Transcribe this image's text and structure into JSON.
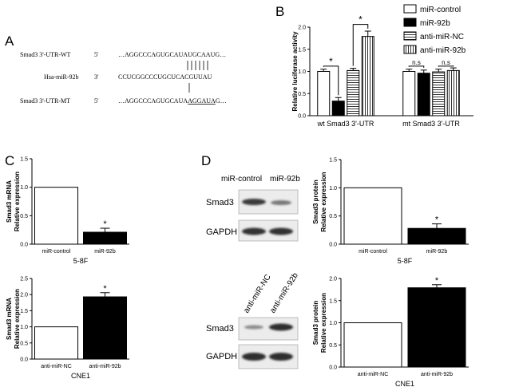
{
  "panels": {
    "A": {
      "letter": "A",
      "rows": [
        {
          "label": "Smad3 3'-UTR-WT",
          "end": "5'",
          "seq": "…AGGCCCAGUGCAUAUGCAAUG…"
        },
        {
          "label": "Hsa-miR-92b",
          "end": "3'",
          "seq": "CCUCGGCCCUGCUCACGUUAU"
        },
        {
          "label": "Smad3 3'-UTR-MT",
          "end": "5'",
          "seq_pre": "…AGGCCCAGUGCAUA",
          "seq_mut": "AGGAUA",
          "seq_post": "G…"
        }
      ]
    },
    "B": {
      "letter": "B"
    },
    "C": {
      "letter": "C"
    },
    "D": {
      "letter": "D",
      "blot_top": {
        "lanes": [
          "miR-control",
          "miR-92b"
        ],
        "rows": [
          "Smad3",
          "GAPDH"
        ]
      },
      "blot_bottom": {
        "lanes": [
          "anti-miR-NC",
          "anti-miR-92b"
        ],
        "rows": [
          "Smad3",
          "GAPDH"
        ]
      }
    }
  },
  "chart_data": [
    {
      "id": "B",
      "type": "bar",
      "ylabel": "Relative luciferase activity",
      "ylim": [
        0.0,
        2.0
      ],
      "yticks": [
        "0.0",
        "0.5",
        "1.0",
        "1.5",
        "2.0"
      ],
      "groups": [
        "wt Smad3 3'-UTR",
        "mt Smad3 3'-UTR"
      ],
      "legend": {
        "position": "top-right",
        "entries": [
          "miR-control",
          "miR-92b",
          "anti-miR-NC",
          "anti-miR-92b"
        ]
      },
      "series": [
        {
          "name": "miR-control",
          "values": [
            1.0,
            1.0
          ],
          "errors": [
            0.05,
            0.05
          ]
        },
        {
          "name": "miR-92b",
          "values": [
            0.33,
            0.96
          ],
          "errors": [
            0.08,
            0.07
          ]
        },
        {
          "name": "anti-miR-NC",
          "values": [
            1.02,
            0.99
          ],
          "errors": [
            0.05,
            0.06
          ]
        },
        {
          "name": "anti-miR-92b",
          "values": [
            1.79,
            1.02
          ],
          "errors": [
            0.12,
            0.06
          ]
        }
      ],
      "annotations": [
        "*",
        "*",
        "n.s",
        "n.s"
      ]
    },
    {
      "id": "C-top",
      "type": "bar",
      "ylabel": "Smad3 mRNA Relative expression",
      "ylim": [
        0.0,
        1.5
      ],
      "yticks": [
        "0.0",
        "0.5",
        "1.0",
        "1.5"
      ],
      "categories": [
        "miR-control",
        "miR-92b"
      ],
      "values": [
        1.0,
        0.21
      ],
      "errors": [
        0.0,
        0.07
      ],
      "xlabel": "5-8F",
      "annotations": [
        "*"
      ]
    },
    {
      "id": "C-bottom",
      "type": "bar",
      "ylabel": "Smad3 mRNA Relative expression",
      "ylim": [
        0.0,
        2.5
      ],
      "yticks": [
        "0.0",
        "0.5",
        "1.0",
        "1.5",
        "2.0",
        "2.5"
      ],
      "categories": [
        "anti-miR-NC",
        "anti-miR-92b"
      ],
      "values": [
        1.0,
        1.93
      ],
      "errors": [
        0.0,
        0.13
      ],
      "xlabel": "CNE1",
      "annotations": [
        "*"
      ]
    },
    {
      "id": "D-top",
      "type": "bar",
      "ylabel": "Smad3 protein Relative expression",
      "ylim": [
        0.0,
        1.5
      ],
      "yticks": [
        "0.0",
        "0.5",
        "1.0",
        "1.5"
      ],
      "categories": [
        "miR-control",
        "miR-92b"
      ],
      "values": [
        1.0,
        0.28
      ],
      "errors": [
        0.0,
        0.08
      ],
      "xlabel": "5-8F",
      "annotations": [
        "*"
      ]
    },
    {
      "id": "D-bottom",
      "type": "bar",
      "ylabel": "Smad3 protein Relative expression",
      "ylim": [
        0.0,
        2.0
      ],
      "yticks": [
        "0.0",
        "0.5",
        "1.0",
        "1.5",
        "2.0"
      ],
      "categories": [
        "anti-miR-NC",
        "anti-miR-92b"
      ],
      "values": [
        1.0,
        1.79
      ],
      "errors": [
        0.0,
        0.07
      ],
      "xlabel": "CNE1",
      "annotations": [
        "*"
      ]
    }
  ]
}
